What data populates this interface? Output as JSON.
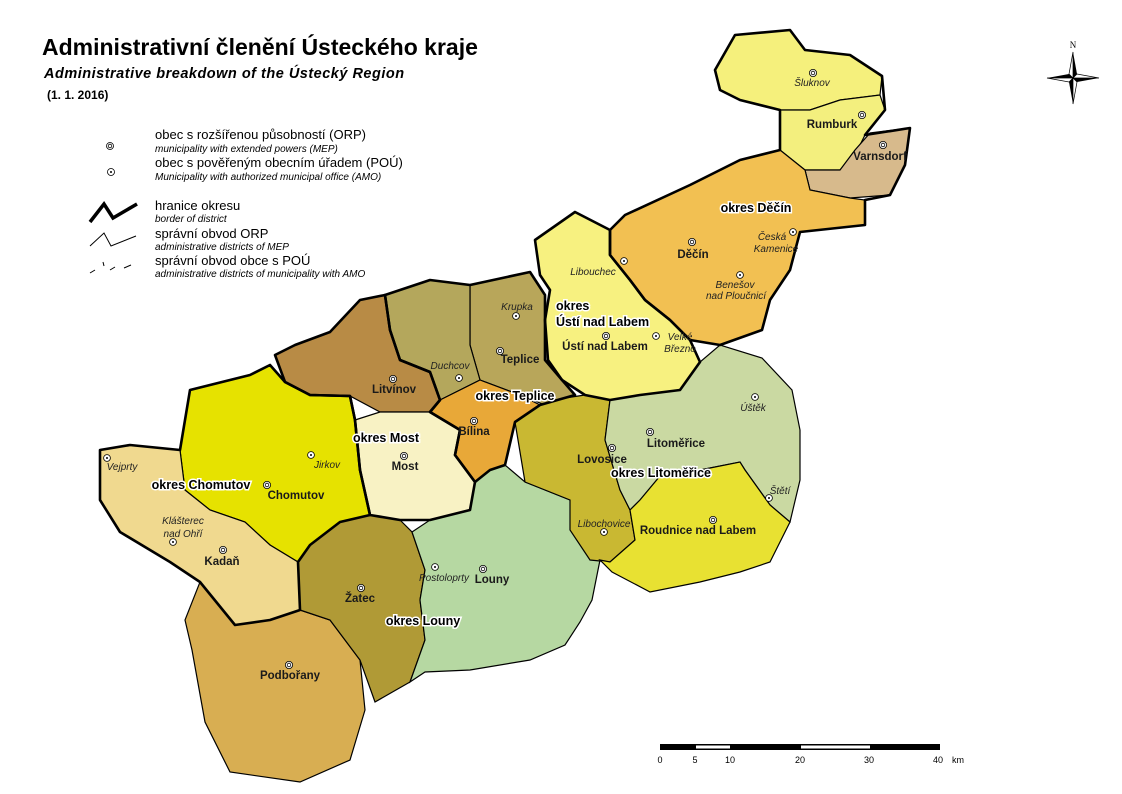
{
  "title": "Administrativní členění Ústeckého kraje",
  "subtitle": "Administrative breakdown of the Ústecký Region",
  "date": "(1. 1. 2016)",
  "legend": {
    "orp_cz": "obec s rozšířenou působností (ORP)",
    "orp_en": "municipality with extended powers (MEP)",
    "pou_cz": "obec s pověřeným obecním úřadem (POÚ)",
    "pou_en": "Municipality with authorized municipal office (AMO)",
    "border_cz": "hranice okresu",
    "border_en": "border of district",
    "orp_area_cz": "správní obvod ORP",
    "orp_area_en": "administrative districts of MEP",
    "pou_area_cz": "správní obvod obce s POÚ",
    "pou_area_en": "administrative districts of municipality with AMO"
  },
  "regions": [
    {
      "name": "Šluknov",
      "color": "#f5f07c"
    },
    {
      "name": "Rumburk",
      "color": "#f3ef7e"
    },
    {
      "name": "Varnsdorf",
      "color": "#d7ba8c"
    },
    {
      "name": "Děčín",
      "color": "#f2c052"
    },
    {
      "name": "Ústí nad Labem",
      "color": "#f7f180"
    },
    {
      "name": "Teplice",
      "color": "#b8a65a"
    },
    {
      "name": "Duchcov",
      "color": "#b4a75c"
    },
    {
      "name": "Litvínov",
      "color": "#b88b45"
    },
    {
      "name": "Bílina",
      "color": "#e8a838"
    },
    {
      "name": "Most",
      "color": "#f8f2c4"
    },
    {
      "name": "Chomutov",
      "color": "#e6e200"
    },
    {
      "name": "Kadaň",
      "color": "#f0d98f"
    },
    {
      "name": "Podbořany",
      "color": "#d8ae52"
    },
    {
      "name": "Žatec",
      "color": "#b09a36"
    },
    {
      "name": "Louny",
      "color": "#b6d8a2"
    },
    {
      "name": "Lovosice",
      "color": "#c9b832"
    },
    {
      "name": "Litoměřice",
      "color": "#cad9a2"
    },
    {
      "name": "Roudnice nad Labem",
      "color": "#e8e132"
    }
  ],
  "districts": {
    "decin": "okres Děčín",
    "usti_1": "okres",
    "usti_2": "Ústí nad Labem",
    "teplice": "okres Teplice",
    "most": "okres Most",
    "chomutov": "okres Chomutov",
    "louny": "okres Louny",
    "litomerice": "okres Litoměřice"
  },
  "orp": {
    "sluknov": "Šluknov",
    "rumburk": "Rumburk",
    "varnsdorf": "Varnsdorf",
    "decin": "Děčín",
    "usti": "Ústí nad Labem",
    "teplice": "Teplice",
    "litvinov": "Litvínov",
    "bilina": "Bílina",
    "most": "Most",
    "chomutov": "Chomutov",
    "kadan": "Kadaň",
    "zatec": "Žatec",
    "podborany": "Podbořany",
    "louny": "Louny",
    "lovosice": "Lovosice",
    "litomerice": "Litoměřice",
    "roudnice": "Roudnice nad Labem"
  },
  "pou": {
    "vejprty": "Vejprty",
    "klasterec_1": "Klášterec",
    "klasterec_2": "nad Ohří",
    "jirkov": "Jirkov",
    "duchcov": "Duchcov",
    "krupka": "Krupka",
    "libouchec": "Libouchec",
    "velke_1": "Velké",
    "velke_2": "Březno",
    "ceska_1": "Česká",
    "ceska_2": "Kamenice",
    "benesov_1": "Benešov",
    "benesov_2": "nad Ploučnicí",
    "ustek": "Úštěk",
    "steti": "Štětí",
    "libochovice": "Libochovice",
    "postoloprty": "Postoloprty"
  },
  "compass": {
    "north": "N"
  },
  "scale": {
    "ticks": [
      "0",
      "5",
      "10",
      "20",
      "30",
      "40"
    ],
    "unit": "km"
  }
}
